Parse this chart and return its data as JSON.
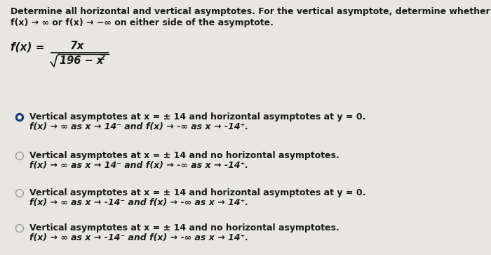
{
  "bg_color": "#e8e6e1",
  "text_color": "#1a1a1a",
  "circle_filled_color": "#1a3a7a",
  "circle_empty_color": "#999999",
  "font_size_title": 9.0,
  "font_size_option_bold": 9.0,
  "font_size_option_italic": 9.0,
  "font_size_formula": 11.5,
  "title_line1": "Determine all horizontal and vertical asymptotes. For the vertical asymptote, determine whether",
  "title_line2_plain": "f(x)→∞ or f(x)→-∞ on either side of the asymptote.",
  "options": [
    {
      "selected": true,
      "line1": "Vertical asymptotes at x = ± 14 and horizontal asymptotes at y = 0.",
      "line2": "f(x) → ∞ as x → 14⁻ and f(x) → -∞ as x → -14⁺."
    },
    {
      "selected": false,
      "line1": "Vertical asymptotes at x = ± 14 and no horizontal asymptotes.",
      "line2": "f(x) → ∞ as x → 14⁻ and f(x) → -∞ as x → -14⁺."
    },
    {
      "selected": false,
      "line1": "Vertical asymptotes at x = ± 14 and horizontal asymptotes at y = 0.",
      "line2": "f(x) → ∞ as x → -14⁻ and f(x) → -∞ as x → 14⁺."
    },
    {
      "selected": false,
      "line1": "Vertical asymptotes at x = ± 14 and no horizontal asymptotes.",
      "line2": "f(x) → ∞ as x → -14⁻ and f(x) → -∞ as x → 14⁺."
    }
  ]
}
